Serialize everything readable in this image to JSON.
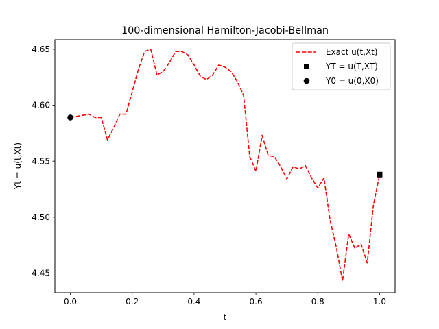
{
  "chart_data": {
    "type": "line",
    "title": "100-dimensional Hamilton-Jacobi-Bellman",
    "xlabel": "t",
    "ylabel": "Yt = u(t,Xt)",
    "xlim": [
      -0.05,
      1.05
    ],
    "ylim": [
      4.4325,
      4.6585
    ],
    "xticks": [
      0.0,
      0.2,
      0.4,
      0.6,
      0.8,
      1.0
    ],
    "xtick_labels": [
      "0.0",
      "0.2",
      "0.4",
      "0.6",
      "0.8",
      "1.0"
    ],
    "yticks": [
      4.45,
      4.5,
      4.55,
      4.6,
      4.65
    ],
    "ytick_labels": [
      "4.45",
      "4.50",
      "4.55",
      "4.60",
      "4.65"
    ],
    "grid": false,
    "legend_position": "top-right",
    "series": [
      {
        "name": "Exact u(t,Xt)",
        "style": "dashed-line",
        "color": "#ff0000",
        "x": [
          0.0,
          0.02,
          0.04,
          0.06,
          0.08,
          0.1,
          0.12,
          0.14,
          0.16,
          0.18,
          0.2,
          0.22,
          0.24,
          0.26,
          0.28,
          0.3,
          0.32,
          0.34,
          0.36,
          0.38,
          0.4,
          0.42,
          0.44,
          0.46,
          0.48,
          0.5,
          0.52,
          0.54,
          0.56,
          0.58,
          0.6,
          0.62,
          0.64,
          0.66,
          0.68,
          0.7,
          0.72,
          0.74,
          0.76,
          0.78,
          0.8,
          0.82,
          0.84,
          0.86,
          0.88,
          0.9,
          0.92,
          0.94,
          0.96,
          0.98,
          1.0
        ],
        "y": [
          4.589,
          4.59,
          4.591,
          4.592,
          4.589,
          4.589,
          4.569,
          4.58,
          4.592,
          4.592,
          4.612,
          4.632,
          4.648,
          4.65,
          4.627,
          4.63,
          4.638,
          4.648,
          4.648,
          4.645,
          4.636,
          4.626,
          4.623,
          4.627,
          4.636,
          4.634,
          4.63,
          4.621,
          4.609,
          4.554,
          4.541,
          4.573,
          4.555,
          4.554,
          4.545,
          4.534,
          4.545,
          4.543,
          4.546,
          4.535,
          4.526,
          4.535,
          4.497,
          4.473,
          4.443,
          4.485,
          4.472,
          4.476,
          4.459,
          4.511,
          4.538
        ]
      },
      {
        "name": "YT = u(T,XT)",
        "style": "square-marker",
        "color": "#000000",
        "x": [
          1.0
        ],
        "y": [
          4.538
        ]
      },
      {
        "name": "Y0 = u(0,X0)",
        "style": "circle-marker",
        "color": "#000000",
        "x": [
          0.0
        ],
        "y": [
          4.589
        ]
      }
    ]
  }
}
